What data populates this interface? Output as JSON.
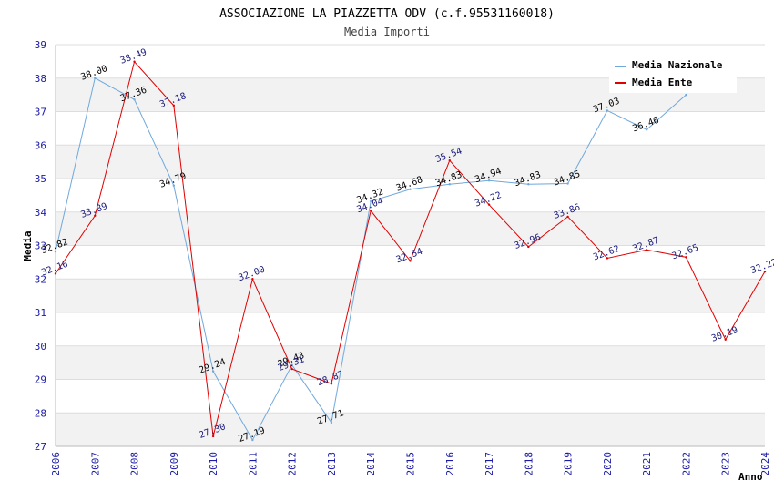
{
  "chart_data": {
    "type": "line",
    "title": "ASSOCIAZIONE LA PIAZZETTA ODV (c.f.95531160018)",
    "subtitle": "Media Importi",
    "xlabel": "Anno",
    "ylabel": "Media",
    "ylim": [
      27,
      39
    ],
    "y_ticks": [
      "27",
      "28",
      "29",
      "30",
      "31",
      "32",
      "33",
      "34",
      "35",
      "36",
      "37",
      "38",
      "39"
    ],
    "x": [
      "2006",
      "2007",
      "2008",
      "2009",
      "2010",
      "2011",
      "2012",
      "2013",
      "2014",
      "2015",
      "2016",
      "2017",
      "2018",
      "2019",
      "2020",
      "2021",
      "2022",
      "2023",
      "2024"
    ],
    "grid": "horizontal bands",
    "legend_position": "top-right",
    "series": [
      {
        "name": "Media Nazionale",
        "color": "#6fa8dc",
        "values": [
          32.82,
          38.0,
          37.36,
          34.79,
          29.24,
          27.19,
          29.43,
          27.71,
          34.32,
          34.68,
          34.83,
          34.94,
          34.83,
          34.85,
          37.03,
          36.46,
          37.5,
          null,
          null
        ],
        "labels": [
          "32.82",
          "38.00",
          "37.36",
          "34.79",
          "29.24",
          "27.19",
          "29.43",
          "27.71",
          "34.32",
          "34.68",
          "34.83",
          "34.94",
          "34.83",
          "34.85",
          "37.03",
          "36.46",
          "",
          "",
          ""
        ]
      },
      {
        "name": "Media Ente",
        "color": "#e00000",
        "values": [
          32.16,
          33.89,
          38.49,
          37.18,
          27.3,
          32.0,
          29.31,
          28.87,
          34.04,
          32.54,
          35.54,
          34.22,
          32.96,
          33.86,
          32.62,
          32.87,
          32.65,
          30.19,
          32.22
        ],
        "labels": [
          "32.16",
          "33.89",
          "38.49",
          "37.18",
          "27.30",
          "32.00",
          "29.31",
          "28.87",
          "34.04",
          "32.54",
          "35.54",
          "34.22",
          "32.96",
          "33.86",
          "32.62",
          "32.87",
          "32.65",
          "30.19",
          "32.22"
        ]
      }
    ]
  }
}
